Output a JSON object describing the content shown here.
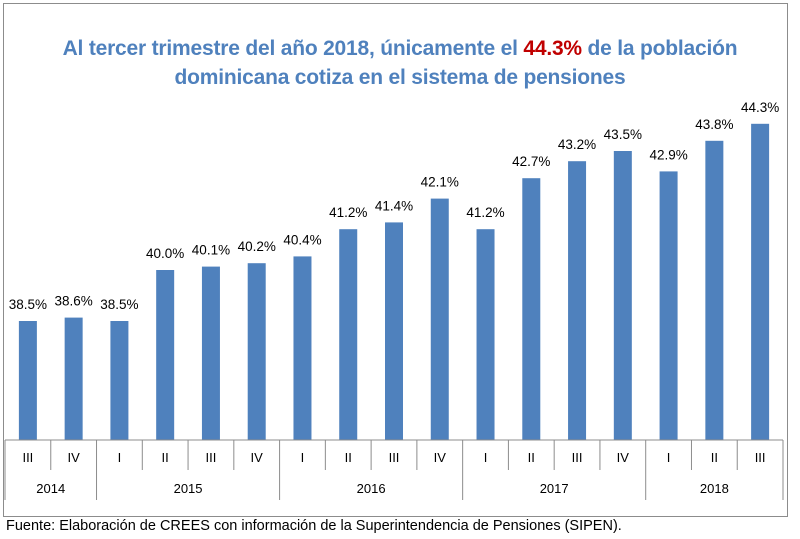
{
  "title": {
    "line1_before": "Al tercer trimestre del año 2018, únicamente el ",
    "highlight": "44.3%",
    "line1_after": " de la población",
    "line2": "dominicana cotiza en el sistema de pensiones",
    "color": "#4f81bd",
    "highlight_color": "#c00000"
  },
  "footer": "Fuente: Elaboración de CREES con información de la Superintendencia de Pensiones (SIPEN).",
  "chart_data": {
    "type": "bar",
    "title": "Al tercer trimestre del año 2018, únicamente el 44.3% de la población dominicana cotiza en el sistema de pensiones",
    "xlabel": "",
    "ylabel": "",
    "ylim": [
      35,
      45
    ],
    "grid": false,
    "legend": "none",
    "bar_color": "#4f81bd",
    "categories": [
      "III",
      "IV",
      "I",
      "II",
      "III",
      "IV",
      "I",
      "II",
      "III",
      "IV",
      "I",
      "II",
      "III",
      "IV",
      "I",
      "II",
      "III"
    ],
    "groups": [
      {
        "label": "2014",
        "count": 2
      },
      {
        "label": "2015",
        "count": 4
      },
      {
        "label": "2016",
        "count": 4
      },
      {
        "label": "2017",
        "count": 4
      },
      {
        "label": "2018",
        "count": 3
      }
    ],
    "values": [
      38.5,
      38.6,
      38.5,
      40.0,
      40.1,
      40.2,
      40.4,
      41.2,
      41.4,
      42.1,
      41.2,
      42.7,
      43.2,
      43.5,
      42.9,
      43.8,
      44.3
    ],
    "value_labels": [
      "38.5%",
      "38.6%",
      "38.5%",
      "40.0%",
      "40.1%",
      "40.2%",
      "40.4%",
      "41.2%",
      "41.4%",
      "42.1%",
      "41.2%",
      "42.7%",
      "43.2%",
      "43.5%",
      "42.9%",
      "43.8%",
      "44.3%"
    ]
  }
}
